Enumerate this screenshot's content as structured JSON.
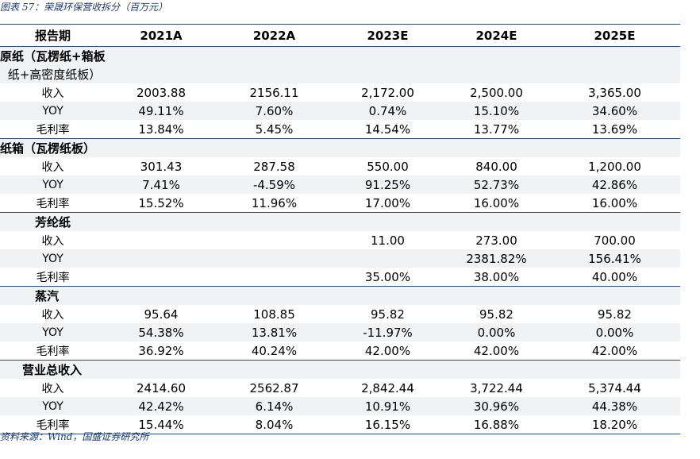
{
  "caption": "图表 57：荣晟环保营收拆分（百万元）",
  "header": [
    "报告期",
    "2021A",
    "2022A",
    "2023E",
    "2024E",
    "2025E"
  ],
  "sections": [
    {
      "title_lines": [
        "原纸（瓦楞纸+箱板",
        "纸+高密度纸板）"
      ],
      "rows": [
        {
          "label": "收入",
          "values": [
            "2003.88",
            "2156.11",
            "2,172.00",
            "2,500.00",
            "3,365.00"
          ]
        },
        {
          "label": "YOY",
          "values": [
            "49.11%",
            "7.60%",
            "0.74%",
            "15.10%",
            "34.60%"
          ]
        },
        {
          "label": "毛利率",
          "values": [
            "13.84%",
            "5.45%",
            "14.54%",
            "13.77%",
            "13.69%"
          ]
        }
      ]
    },
    {
      "title_lines": [
        "纸箱（瓦楞纸板）"
      ],
      "rows": [
        {
          "label": "收入",
          "values": [
            "301.43",
            "287.58",
            "550.00",
            "840.00",
            "1,200.00"
          ]
        },
        {
          "label": "YOY",
          "values": [
            "7.41%",
            "-4.59%",
            "91.25%",
            "52.73%",
            "42.86%"
          ]
        },
        {
          "label": "毛利率",
          "values": [
            "15.52%",
            "11.96%",
            "17.00%",
            "16.00%",
            "16.00%"
          ]
        }
      ]
    },
    {
      "title_lines": [
        "芳纶纸"
      ],
      "rows": [
        {
          "label": "收入",
          "values": [
            "",
            "",
            "11.00",
            "273.00",
            "700.00"
          ]
        },
        {
          "label": "YOY",
          "values": [
            "",
            "",
            "",
            "2381.82%",
            "156.41%"
          ]
        },
        {
          "label": "毛利率",
          "values": [
            "",
            "",
            "35.00%",
            "38.00%",
            "40.00%"
          ]
        }
      ]
    },
    {
      "title_lines": [
        "蒸汽"
      ],
      "rows": [
        {
          "label": "收入",
          "values": [
            "95.64",
            "108.85",
            "95.82",
            "95.82",
            "95.82"
          ]
        },
        {
          "label": "YOY",
          "values": [
            "54.38%",
            "13.81%",
            "-11.97%",
            "0.00%",
            "0.00%"
          ]
        },
        {
          "label": "毛利率",
          "values": [
            "36.92%",
            "40.24%",
            "42.00%",
            "42.00%",
            "42.00%"
          ]
        }
      ]
    },
    {
      "title_lines": [
        "营业总收入"
      ],
      "rows": [
        {
          "label": "收入",
          "values": [
            "2414.60",
            "2562.87",
            "2,842.44",
            "3,722.44",
            "5,374.44"
          ]
        },
        {
          "label": "YOY",
          "values": [
            "42.42%",
            "6.14%",
            "10.91%",
            "30.96%",
            "44.38%"
          ]
        },
        {
          "label": "毛利率",
          "values": [
            "15.44%",
            "8.04%",
            "16.15%",
            "16.88%",
            "18.20%"
          ]
        }
      ]
    }
  ],
  "footer": "资料来源：Wind，国盛证券研究所"
}
